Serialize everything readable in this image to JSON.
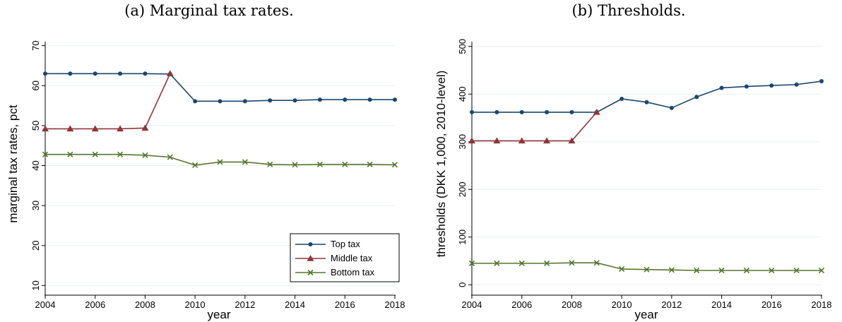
{
  "colors": {
    "top": "#1a476f",
    "middle": "#90353b",
    "bottom": "#55752f"
  },
  "chart_data": [
    {
      "type": "line",
      "title": "(a) Marginal tax rates.",
      "xlabel": "year",
      "ylabel": "marginal tax rates, pct",
      "xlim": [
        2004,
        2018
      ],
      "ylim": [
        9,
        71
      ],
      "xticks": [
        2004,
        2006,
        2008,
        2010,
        2012,
        2014,
        2016,
        2018
      ],
      "yticks": [
        10,
        20,
        30,
        40,
        50,
        60,
        70
      ],
      "grid": true,
      "legend_position": "bottom-right",
      "series": [
        {
          "name": "Top tax",
          "marker": "circle",
          "color": "#1a476f",
          "x": [
            2004,
            2005,
            2006,
            2007,
            2008,
            2009,
            2010,
            2011,
            2012,
            2013,
            2014,
            2015,
            2016,
            2017,
            2018
          ],
          "y": [
            63.0,
            63.0,
            63.0,
            63.0,
            63.0,
            62.9,
            56.1,
            56.1,
            56.1,
            56.3,
            56.3,
            56.5,
            56.5,
            56.5,
            56.5
          ]
        },
        {
          "name": "Middle tax",
          "marker": "triangle",
          "color": "#90353b",
          "x": [
            2004,
            2005,
            2006,
            2007,
            2008,
            2009
          ],
          "y": [
            49.2,
            49.2,
            49.2,
            49.2,
            49.4,
            63.0
          ]
        },
        {
          "name": "Bottom tax",
          "marker": "x",
          "color": "#55752f",
          "x": [
            2004,
            2005,
            2006,
            2007,
            2008,
            2009,
            2010,
            2011,
            2012,
            2013,
            2014,
            2015,
            2016,
            2017,
            2018
          ],
          "y": [
            42.8,
            42.8,
            42.8,
            42.8,
            42.6,
            42.1,
            40.1,
            40.9,
            40.9,
            40.3,
            40.2,
            40.3,
            40.3,
            40.3,
            40.2
          ]
        }
      ]
    },
    {
      "type": "line",
      "title": "(b) Thresholds.",
      "xlabel": "year",
      "ylabel": "thresholds (DKK 1,000, 2010-level)",
      "xlim": [
        2004,
        2018
      ],
      "ylim": [
        -10,
        510
      ],
      "xticks": [
        2004,
        2006,
        2008,
        2010,
        2012,
        2014,
        2016,
        2018
      ],
      "yticks": [
        0,
        100,
        200,
        300,
        400,
        500
      ],
      "grid": true,
      "series": [
        {
          "name": "Top tax",
          "marker": "circle",
          "color": "#1a476f",
          "x": [
            2004,
            2005,
            2006,
            2007,
            2008,
            2009,
            2010,
            2011,
            2012,
            2013,
            2014,
            2015,
            2016,
            2017,
            2018
          ],
          "y": [
            362,
            362,
            362,
            362,
            362,
            362,
            390,
            383,
            371,
            394,
            413,
            416,
            418,
            420,
            427
          ]
        },
        {
          "name": "Middle tax",
          "marker": "triangle",
          "color": "#90353b",
          "x": [
            2004,
            2005,
            2006,
            2007,
            2008,
            2009
          ],
          "y": [
            302,
            302,
            302,
            302,
            302,
            362
          ]
        },
        {
          "name": "Bottom tax",
          "marker": "x",
          "color": "#55752f",
          "x": [
            2004,
            2005,
            2006,
            2007,
            2008,
            2009,
            2010,
            2011,
            2012,
            2013,
            2014,
            2015,
            2016,
            2017,
            2018
          ],
          "y": [
            45,
            45,
            45,
            45,
            46,
            46,
            33,
            32,
            31,
            30,
            30,
            30,
            30,
            30,
            30
          ]
        }
      ]
    }
  ]
}
